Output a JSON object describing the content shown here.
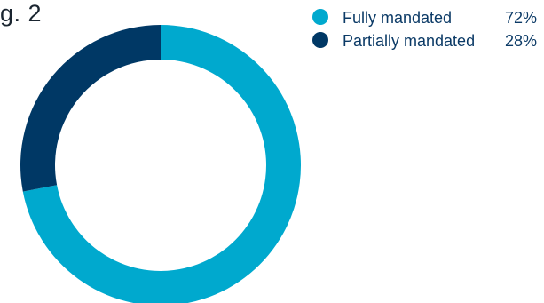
{
  "figure": {
    "label": "g. 2"
  },
  "chart_data": {
    "type": "pie",
    "style": "donut",
    "title": "",
    "slices": [
      {
        "label": "Fully mandated",
        "value": 72,
        "display": "72%",
        "color": "#00a9ce"
      },
      {
        "label": "Partially mandated",
        "value": 28,
        "display": "28%",
        "color": "#003865"
      }
    ],
    "legend_position": "top-right",
    "start_angle": "12 o'clock",
    "direction": "clockwise"
  }
}
